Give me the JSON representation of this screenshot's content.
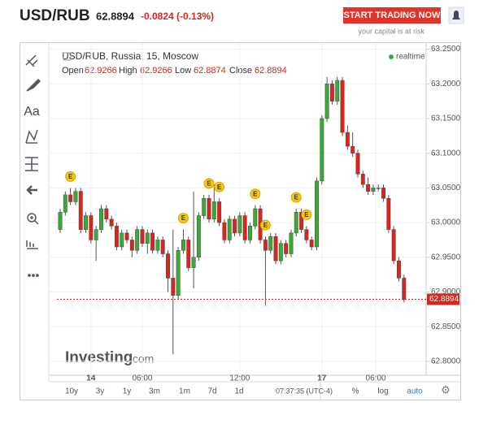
{
  "header": {
    "symbol": "USD/RUB",
    "price": "62.8894",
    "change": "-0.0824 (-0.13%)",
    "cta": "START TRADING NOW",
    "disclaimer": "your capital is at risk"
  },
  "toolbar": {
    "text_tool": "Aa",
    "more": "•••"
  },
  "legend": {
    "title": "USD/RUB, Russia, 15, Moscow",
    "open_label": "Open",
    "open": "62.9266",
    "high_label": "High",
    "high": "62.9266",
    "low_label": "Low",
    "low": "62.8874",
    "close_label": "Close",
    "close": "62.8894",
    "status": "realtime"
  },
  "logo": {
    "main": "Investing",
    "suffix": ".com"
  },
  "bottom_bar": {
    "ranges": [
      "10y",
      "3y",
      "1y",
      "3m",
      "1m",
      "7d",
      "1d"
    ],
    "clock": "07:37:35 (UTC-4)",
    "options": [
      "%",
      "log",
      "auto"
    ]
  },
  "chart_data": {
    "type": "candlestick",
    "colors": {
      "up": "#3aaa35",
      "down": "#d9251d"
    },
    "open": [
      62.99,
      63.015,
      63.04,
      63.03,
      63.045,
      62.99,
      63.01,
      62.975,
      62.99,
      63.02,
      63.005,
      62.995,
      62.965,
      62.985,
      62.975,
      62.96,
      62.99,
      62.97,
      62.985,
      62.96,
      62.975,
      62.955,
      62.92,
      62.895,
      62.96,
      62.975,
      62.935,
      62.95,
      63.01,
      63.035,
      63.005,
      63.03,
      63.0,
      62.975,
      63.005,
      62.985,
      63.01,
      62.975,
      62.995,
      63.02,
      62.975,
      62.96,
      62.98,
      62.945,
      62.97,
      62.955,
      62.985,
      63.015,
      62.99,
      62.975,
      62.965,
      63.06,
      63.15,
      63.2,
      63.175,
      63.205,
      63.13,
      63.11,
      63.1,
      63.07,
      63.055,
      63.045,
      63.05,
      63.05,
      63.035,
      62.99,
      62.945,
      62.92
    ],
    "high": [
      63.02,
      63.045,
      63.05,
      63.05,
      63.05,
      63.015,
      63.015,
      62.995,
      63.025,
      63.025,
      63.01,
      63.0,
      62.99,
      62.99,
      62.98,
      62.995,
      62.995,
      62.99,
      62.99,
      62.98,
      62.98,
      62.96,
      62.99,
      62.965,
      62.99,
      62.98,
      63.045,
      63.015,
      63.04,
      63.04,
      63.055,
      63.035,
      63.005,
      63.01,
      63.01,
      63.015,
      63.015,
      63.0,
      63.025,
      63.025,
      62.98,
      62.985,
      62.985,
      62.975,
      62.975,
      62.99,
      63.02,
      63.02,
      62.995,
      62.98,
      63.065,
      63.155,
      63.21,
      63.205,
      63.21,
      63.21,
      63.14,
      63.13,
      63.105,
      63.075,
      63.065,
      63.055,
      63.055,
      63.055,
      63.04,
      62.995,
      62.95,
      62.925
    ],
    "low": [
      62.985,
      63.01,
      63.025,
      63.025,
      62.985,
      62.985,
      62.97,
      62.945,
      62.985,
      63.0,
      62.99,
      62.96,
      62.96,
      62.97,
      62.95,
      62.955,
      62.965,
      62.955,
      62.955,
      62.955,
      62.95,
      62.9,
      62.81,
      62.89,
      62.955,
      62.93,
      62.905,
      62.945,
      63.005,
      63.0,
      63.0,
      62.995,
      62.97,
      62.97,
      62.98,
      62.98,
      62.97,
      62.97,
      62.99,
      62.97,
      62.88,
      62.955,
      62.94,
      62.94,
      62.95,
      62.95,
      62.98,
      62.985,
      62.97,
      62.96,
      62.96,
      63.055,
      63.145,
      63.17,
      63.17,
      63.125,
      63.105,
      63.095,
      63.065,
      63.05,
      63.04,
      63.04,
      63.045,
      63.03,
      62.985,
      62.94,
      62.915,
      62.885
    ],
    "close": [
      63.015,
      63.04,
      63.03,
      63.045,
      62.99,
      63.01,
      62.975,
      62.99,
      63.02,
      63.005,
      62.995,
      62.965,
      62.985,
      62.975,
      62.96,
      62.99,
      62.97,
      62.985,
      62.96,
      62.975,
      62.955,
      62.92,
      62.895,
      62.96,
      62.975,
      62.935,
      62.95,
      63.01,
      63.035,
      63.005,
      63.03,
      63.0,
      62.975,
      63.005,
      62.985,
      63.01,
      62.975,
      62.995,
      63.02,
      62.975,
      62.96,
      62.98,
      62.945,
      62.97,
      62.955,
      62.985,
      63.015,
      62.99,
      62.975,
      62.965,
      63.06,
      63.15,
      63.2,
      63.175,
      63.205,
      63.13,
      63.11,
      63.1,
      63.07,
      63.055,
      63.045,
      63.05,
      63.05,
      63.035,
      62.99,
      62.945,
      62.92,
      62.889
    ],
    "events": [
      {
        "index": 2,
        "label": "E"
      },
      {
        "index": 24,
        "label": "E"
      },
      {
        "index": 29,
        "label": "E"
      },
      {
        "index": 31,
        "label": "E"
      },
      {
        "index": 38,
        "label": "E"
      },
      {
        "index": 40,
        "label": "E"
      },
      {
        "index": 46,
        "label": "E"
      },
      {
        "index": 48,
        "label": "E"
      }
    ],
    "xticks": [
      {
        "value": 6,
        "label": "14"
      },
      {
        "value": 16,
        "label": "06:00"
      },
      {
        "value": 35,
        "label": "12:00"
      },
      {
        "value": 51,
        "label": "17"
      },
      {
        "value": 61.5,
        "label": "06:00"
      }
    ],
    "ylim": [
      62.78,
      63.26
    ],
    "yticks": [
      {
        "value": 62.8,
        "label": "62.8000"
      },
      {
        "value": 62.85,
        "label": "62.8500"
      },
      {
        "value": 62.9,
        "label": "62.9000"
      },
      {
        "value": 62.95,
        "label": "62.9500"
      },
      {
        "value": 63.0,
        "label": "63.0000"
      },
      {
        "value": 63.05,
        "label": "63.0500"
      },
      {
        "value": 63.1,
        "label": "63.1000"
      },
      {
        "value": 63.15,
        "label": "63.1500"
      },
      {
        "value": 63.2,
        "label": "63.2000"
      },
      {
        "value": 63.25,
        "label": "63.2500"
      }
    ],
    "last_price": {
      "value": 62.8894,
      "label": "62.8894"
    },
    "grid": true
  }
}
